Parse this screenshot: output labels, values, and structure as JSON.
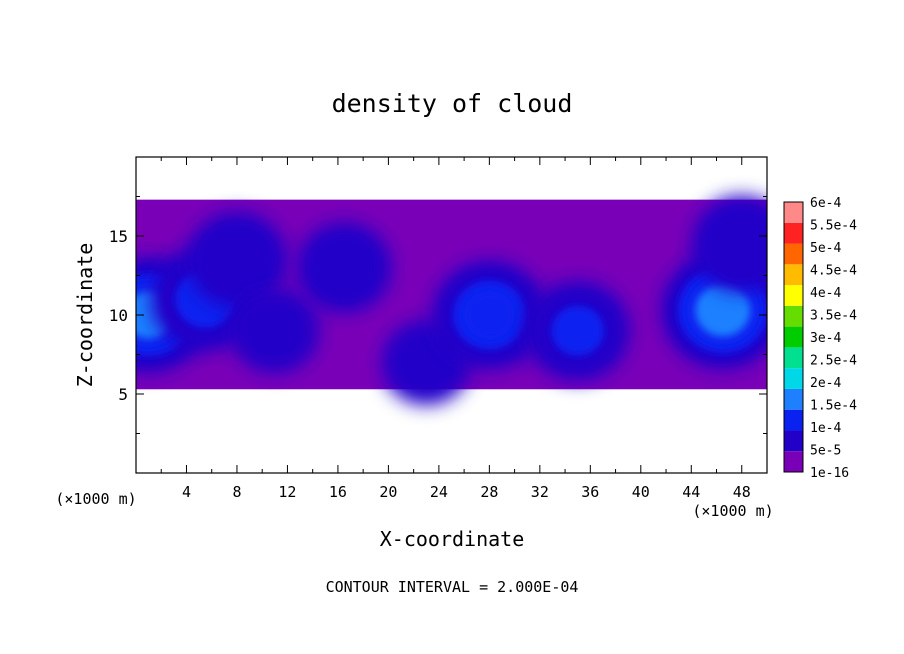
{
  "chart_data": {
    "type": "heatmap",
    "title": "density of cloud",
    "xlabel": "X-coordinate",
    "ylabel": "Z-coordinate",
    "x_unit": "(×1000 m)",
    "z_unit": "(×1000 m)",
    "xlim": [
      0,
      50
    ],
    "ylim": [
      0,
      20
    ],
    "x_ticks": [
      "4",
      "8",
      "12",
      "16",
      "20",
      "24",
      "28",
      "32",
      "36",
      "40",
      "44",
      "48"
    ],
    "y_ticks": [
      "5",
      "10",
      "15"
    ],
    "contour_interval_text": "CONTOUR INTERVAL = 2.000E-04",
    "colorbar": {
      "levels": [
        "1e-16",
        "5e-5",
        "1e-4",
        "1.5e-4",
        "2e-4",
        "2.5e-4",
        "3e-4",
        "3.5e-4",
        "4e-4",
        "4.5e-4",
        "5e-4",
        "5.5e-4",
        "6e-4"
      ],
      "colors": [
        "#7a00b8",
        "#2200c8",
        "#0a22f0",
        "#1e80ff",
        "#00d8e8",
        "#00e090",
        "#00cc00",
        "#66dd00",
        "#ffff00",
        "#ffbb00",
        "#ff6600",
        "#ff2222",
        "#ff8888"
      ]
    },
    "cloud_layer": {
      "z_base": 5.3,
      "z_top": 17.3
    },
    "cores": [
      {
        "x": 1.0,
        "z": 10.0,
        "value": 0.00016
      },
      {
        "x": 5.5,
        "z": 11.0,
        "value": 0.00011
      },
      {
        "x": 8.0,
        "z": 13.5,
        "value": 9e-05
      },
      {
        "x": 11.0,
        "z": 9.0,
        "value": 7e-05
      },
      {
        "x": 16.5,
        "z": 13.0,
        "value": 8e-05
      },
      {
        "x": 23.0,
        "z": 7.0,
        "value": 7e-05
      },
      {
        "x": 28.0,
        "z": 10.0,
        "value": 0.00013
      },
      {
        "x": 35.0,
        "z": 9.0,
        "value": 0.0001
      },
      {
        "x": 46.5,
        "z": 10.3,
        "value": 0.00017
      },
      {
        "x": 48.0,
        "z": 14.5,
        "value": 9e-05
      }
    ]
  }
}
